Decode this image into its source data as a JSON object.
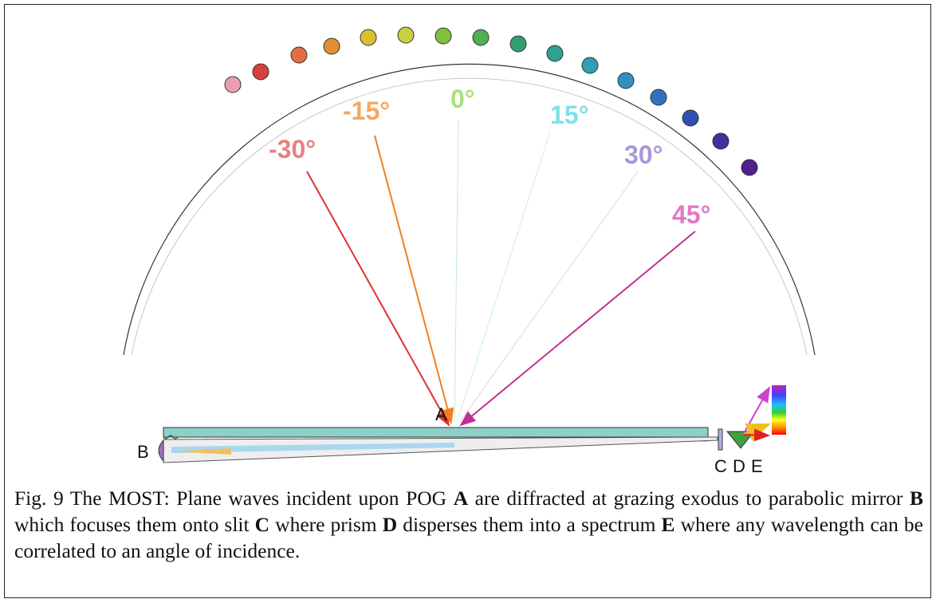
{
  "angles": [
    "-30°",
    "-15°",
    "0°",
    "15°",
    "30°",
    "45°"
  ],
  "parts": [
    "A",
    "B",
    "C",
    "D",
    "E"
  ],
  "caption": {
    "segments": [
      "Fig. 9 The MOST: Plane waves incident upon POG ",
      "A",
      " are diffracted at grazing exodus to parabolic mirror ",
      "B",
      " which focuses them onto slit ",
      "C",
      " where prism ",
      "D",
      " disperses them into a spectrum ",
      "E",
      " where any wavelength can be correlated to an angle of incidence."
    ]
  }
}
